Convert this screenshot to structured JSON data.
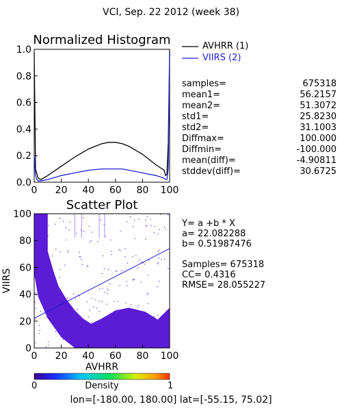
{
  "header": {
    "title": "VCI,  Sep. 22 2012 (week 38)"
  },
  "histogram": {
    "title": "Normalized Histogram",
    "legend": [
      {
        "label": "AVHRR (1)",
        "color": "#000000"
      },
      {
        "label": "VIIRS (2)",
        "color": "#1f1fd6"
      }
    ],
    "xticks": [
      "0",
      "20",
      "40",
      "60",
      "80",
      "100"
    ],
    "yticks": [
      "0.0",
      "0.2",
      "0.4",
      "0.6",
      "0.8",
      "1.0"
    ],
    "stats": [
      {
        "label": "samples=",
        "value": "675318"
      },
      {
        "label": "mean1=",
        "value": "56.2157"
      },
      {
        "label": "mean2=",
        "value": "51.3072"
      },
      {
        "label": "std1=",
        "value": "25.8230"
      },
      {
        "label": "std2=",
        "value": "31.1003"
      },
      {
        "label": "Diffmax=",
        "value": "100.000"
      },
      {
        "label": "Diffmin=",
        "value": "-100.000"
      },
      {
        "label": "mean(diff)=",
        "value": "-4.90811"
      },
      {
        "label": "stddev(diff)=",
        "value": "30.6725"
      }
    ]
  },
  "scatter": {
    "title": "Scatter Plot",
    "xlabel": "AVHRR",
    "ylabel": "VIIRS",
    "xticks": [
      "0",
      "20",
      "40",
      "60",
      "80",
      "100"
    ],
    "yticks": [
      "0",
      "20",
      "40",
      "60",
      "80",
      "100"
    ],
    "stats": [
      "Y= a +b * X",
      "a= 22.082288",
      "b= 0.51987476",
      "",
      "Samples= 675318",
      "CC=  0.4316",
      "RMSE= 28.055227"
    ]
  },
  "colorbar": {
    "min": "0",
    "max": "1",
    "label": "Density"
  },
  "footer": {
    "text": "lon=[-180.00, 180.00] lat=[-55.15, 75.02]"
  },
  "chart_data": [
    {
      "type": "line",
      "title": "Normalized Histogram",
      "xlim": [
        0,
        100
      ],
      "ylim": [
        0,
        1
      ],
      "series": [
        {
          "name": "AVHRR (1)",
          "color": "#000000",
          "x": [
            0,
            1,
            2,
            3,
            5,
            10,
            20,
            30,
            40,
            50,
            55,
            60,
            65,
            70,
            80,
            90,
            96,
            97,
            98,
            99,
            100
          ],
          "y": [
            0.98,
            0.1,
            0.06,
            0.03,
            0.02,
            0.05,
            0.12,
            0.19,
            0.25,
            0.29,
            0.3,
            0.3,
            0.29,
            0.27,
            0.21,
            0.13,
            0.09,
            0.05,
            0.06,
            0.3,
            0.99
          ]
        },
        {
          "name": "VIIRS (2)",
          "color": "#1f1fd6",
          "x": [
            0,
            1,
            2,
            3,
            5,
            10,
            20,
            30,
            40,
            50,
            55,
            60,
            65,
            70,
            80,
            90,
            96,
            97,
            98,
            99,
            100
          ],
          "y": [
            0.2,
            0.05,
            0.02,
            0.01,
            0.01,
            0.02,
            0.05,
            0.07,
            0.09,
            0.1,
            0.1,
            0.1,
            0.1,
            0.09,
            0.07,
            0.05,
            0.03,
            0.02,
            0.02,
            0.1,
            0.98
          ]
        }
      ]
    },
    {
      "type": "scatter",
      "title": "Scatter Plot",
      "xlabel": "AVHRR",
      "ylabel": "VIIRS",
      "xlim": [
        0,
        100
      ],
      "ylim": [
        0,
        100
      ],
      "samples": 675318,
      "fit": {
        "a": 22.082288,
        "b": 0.51987476
      },
      "cc": 0.4316,
      "rmse": 28.055227
    }
  ]
}
